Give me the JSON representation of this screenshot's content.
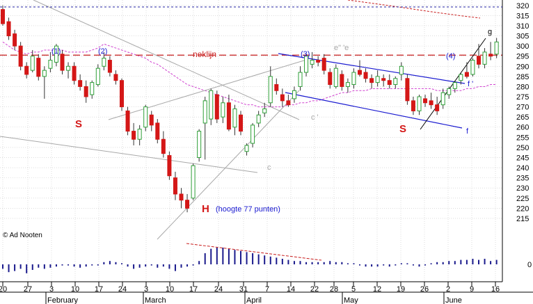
{
  "chart_data": {
    "type": "candlestick",
    "y_axis": {
      "min": 210,
      "max": 322,
      "ticks": [
        215,
        220,
        225,
        230,
        235,
        240,
        245,
        250,
        255,
        260,
        265,
        270,
        275,
        280,
        285,
        290,
        295,
        300,
        305,
        310,
        315,
        320
      ],
      "zero_label": "0"
    },
    "x_ticks": [
      "20",
      "27",
      "3",
      "10",
      "17",
      "24",
      "3",
      "10",
      "17",
      "24",
      "31",
      "7",
      "14",
      "22",
      "28",
      "5",
      "12",
      "19",
      "26",
      "2",
      "9",
      "16"
    ],
    "months": [
      "February",
      "March",
      "April",
      "May",
      "June"
    ],
    "candles": [
      {
        "o": 318,
        "h": 320,
        "l": 310,
        "c": 311
      },
      {
        "o": 312,
        "h": 314,
        "l": 303,
        "c": 305
      },
      {
        "o": 306,
        "h": 308,
        "l": 298,
        "c": 300
      },
      {
        "o": 300,
        "h": 302,
        "l": 288,
        "c": 290
      },
      {
        "o": 290,
        "h": 292,
        "l": 284,
        "c": 286
      },
      {
        "o": 288,
        "h": 298,
        "l": 287,
        "c": 295
      },
      {
        "o": 294,
        "h": 296,
        "l": 283,
        "c": 285
      },
      {
        "o": 285,
        "h": 290,
        "l": 274,
        "c": 288
      },
      {
        "o": 289,
        "h": 297,
        "l": 287,
        "c": 293
      },
      {
        "o": 292,
        "h": 301,
        "l": 290,
        "c": 300
      },
      {
        "o": 296,
        "h": 298,
        "l": 286,
        "c": 288
      },
      {
        "o": 288,
        "h": 292,
        "l": 284,
        "c": 290
      },
      {
        "o": 290,
        "h": 292,
        "l": 281,
        "c": 283
      },
      {
        "o": 283,
        "h": 286,
        "l": 278,
        "c": 280
      },
      {
        "o": 280,
        "h": 283,
        "l": 272,
        "c": 275
      },
      {
        "o": 276,
        "h": 283,
        "l": 274,
        "c": 282
      },
      {
        "o": 281,
        "h": 291,
        "l": 280,
        "c": 289
      },
      {
        "o": 290,
        "h": 297,
        "l": 288,
        "c": 294
      },
      {
        "o": 293,
        "h": 295,
        "l": 285,
        "c": 287
      },
      {
        "o": 286,
        "h": 288,
        "l": 281,
        "c": 283
      },
      {
        "o": 283,
        "h": 284,
        "l": 268,
        "c": 270
      },
      {
        "o": 268,
        "h": 270,
        "l": 256,
        "c": 258
      },
      {
        "o": 258,
        "h": 262,
        "l": 251,
        "c": 254
      },
      {
        "o": 254,
        "h": 261,
        "l": 251,
        "c": 259
      },
      {
        "o": 260,
        "h": 271,
        "l": 258,
        "c": 270
      },
      {
        "o": 266,
        "h": 268,
        "l": 258,
        "c": 261
      },
      {
        "o": 262,
        "h": 264,
        "l": 252,
        "c": 254
      },
      {
        "o": 254,
        "h": 258,
        "l": 245,
        "c": 247
      },
      {
        "o": 246,
        "h": 248,
        "l": 234,
        "c": 236
      },
      {
        "o": 235,
        "h": 238,
        "l": 224,
        "c": 227
      },
      {
        "o": 227,
        "h": 230,
        "l": 220,
        "c": 224
      },
      {
        "o": 224,
        "h": 227,
        "l": 218,
        "c": 220
      },
      {
        "o": 225,
        "h": 242,
        "l": 224,
        "c": 241
      },
      {
        "o": 245,
        "h": 259,
        "l": 243,
        "c": 258
      },
      {
        "o": 262,
        "h": 275,
        "l": 244,
        "c": 273
      },
      {
        "o": 264,
        "h": 279,
        "l": 261,
        "c": 278
      },
      {
        "o": 276,
        "h": 278,
        "l": 262,
        "c": 264
      },
      {
        "o": 265,
        "h": 275,
        "l": 262,
        "c": 272
      },
      {
        "o": 272,
        "h": 276,
        "l": 258,
        "c": 259
      },
      {
        "o": 260,
        "h": 271,
        "l": 256,
        "c": 269
      },
      {
        "o": 266,
        "h": 268,
        "l": 256,
        "c": 258
      },
      {
        "o": 248,
        "h": 252,
        "l": 246,
        "c": 251
      },
      {
        "o": 252,
        "h": 262,
        "l": 250,
        "c": 261
      },
      {
        "o": 262,
        "h": 268,
        "l": 260,
        "c": 266
      },
      {
        "o": 267,
        "h": 272,
        "l": 265,
        "c": 269
      },
      {
        "o": 272,
        "h": 290,
        "l": 270,
        "c": 285
      },
      {
        "o": 281,
        "h": 284,
        "l": 276,
        "c": 278
      },
      {
        "o": 276,
        "h": 279,
        "l": 270,
        "c": 273
      },
      {
        "o": 273,
        "h": 276,
        "l": 270,
        "c": 271
      },
      {
        "o": 274,
        "h": 280,
        "l": 272,
        "c": 278
      },
      {
        "o": 280,
        "h": 290,
        "l": 278,
        "c": 287
      },
      {
        "o": 287,
        "h": 296,
        "l": 285,
        "c": 295
      },
      {
        "o": 291,
        "h": 297,
        "l": 289,
        "c": 293
      },
      {
        "o": 293,
        "h": 295,
        "l": 290,
        "c": 292
      },
      {
        "o": 294,
        "h": 296,
        "l": 286,
        "c": 288
      },
      {
        "o": 287,
        "h": 289,
        "l": 279,
        "c": 281
      },
      {
        "o": 280,
        "h": 291,
        "l": 279,
        "c": 289
      },
      {
        "o": 286,
        "h": 288,
        "l": 278,
        "c": 280
      },
      {
        "o": 280,
        "h": 284,
        "l": 277,
        "c": 282
      },
      {
        "o": 281,
        "h": 289,
        "l": 279,
        "c": 287
      },
      {
        "o": 288,
        "h": 293,
        "l": 285,
        "c": 286
      },
      {
        "o": 287,
        "h": 289,
        "l": 282,
        "c": 284
      },
      {
        "o": 284,
        "h": 286,
        "l": 279,
        "c": 282
      },
      {
        "o": 282,
        "h": 288,
        "l": 280,
        "c": 285
      },
      {
        "o": 284,
        "h": 286,
        "l": 280,
        "c": 283
      },
      {
        "o": 283,
        "h": 286,
        "l": 279,
        "c": 281
      },
      {
        "o": 281,
        "h": 285,
        "l": 279,
        "c": 284
      },
      {
        "o": 286,
        "h": 292,
        "l": 283,
        "c": 290
      },
      {
        "o": 284,
        "h": 286,
        "l": 271,
        "c": 273
      },
      {
        "o": 273,
        "h": 275,
        "l": 266,
        "c": 268
      },
      {
        "o": 268,
        "h": 276,
        "l": 266,
        "c": 275
      },
      {
        "o": 274,
        "h": 276,
        "l": 270,
        "c": 272
      },
      {
        "o": 273,
        "h": 277,
        "l": 269,
        "c": 271
      },
      {
        "o": 271,
        "h": 275,
        "l": 266,
        "c": 268
      },
      {
        "o": 271,
        "h": 279,
        "l": 269,
        "c": 277
      },
      {
        "o": 276,
        "h": 280,
        "l": 274,
        "c": 279
      },
      {
        "o": 279,
        "h": 283,
        "l": 277,
        "c": 282
      },
      {
        "o": 283,
        "h": 287,
        "l": 281,
        "c": 286
      },
      {
        "o": 287,
        "h": 292,
        "l": 284,
        "c": 285
      },
      {
        "o": 286,
        "h": 294,
        "l": 285,
        "c": 293
      },
      {
        "o": 295,
        "h": 301,
        "l": 289,
        "c": 291
      },
      {
        "o": 291,
        "h": 299,
        "l": 289,
        "c": 297
      },
      {
        "o": 296,
        "h": 302,
        "l": 293,
        "c": 295
      },
      {
        "o": 296,
        "h": 304,
        "l": 294,
        "c": 302
      }
    ],
    "volume": [
      -4,
      -7,
      -6,
      -4,
      -8,
      -5,
      -3,
      -4,
      -3,
      -2,
      -1,
      -1,
      -2,
      -3,
      -2,
      -1,
      -1,
      2,
      3,
      2,
      1,
      -2,
      -4,
      -3,
      -2,
      -1,
      -3,
      -2,
      -4,
      -6,
      -3,
      -2,
      -1,
      3,
      10,
      14,
      15,
      15,
      14,
      13,
      12,
      11,
      10,
      9,
      8,
      7,
      6,
      5,
      4,
      3,
      3,
      2,
      2,
      2,
      2,
      3,
      2,
      2,
      1,
      1,
      -1,
      -2,
      -2,
      -2,
      -1,
      -2,
      -1,
      1,
      1,
      -1,
      -2,
      -1,
      1,
      2,
      2,
      3,
      3,
      4,
      4,
      5,
      4,
      5,
      3,
      4
    ],
    "moving_average": [
      302,
      300,
      298,
      297,
      296,
      297,
      297,
      298,
      298,
      298,
      298,
      297,
      297,
      297,
      297,
      298,
      299,
      301,
      300,
      299,
      298,
      297,
      296,
      295,
      294,
      292,
      291,
      289,
      287,
      285,
      283,
      281,
      280,
      279,
      278,
      277,
      276,
      275,
      274,
      273,
      272,
      271,
      271,
      270,
      270,
      270,
      270,
      270,
      271,
      271,
      272,
      272,
      273,
      273,
      274,
      275,
      276,
      277,
      277,
      278,
      278,
      278,
      279,
      279,
      279,
      279,
      279,
      279,
      279,
      279,
      279,
      279,
      279,
      278,
      278,
      278,
      278,
      278,
      279,
      279,
      280,
      280,
      281,
      281
    ],
    "neckline": 295.5,
    "overlay_labels": {
      "neckline": "neklijn",
      "copyright": "© Ad Nooten",
      "height_note": "(hoogte 77 punten)",
      "shoulder_1": "S",
      "shoulder_2": "S",
      "head": "H",
      "peak_1": "(1)",
      "peak_2": "(2)",
      "peak_3": "(3)",
      "peak_4": "(4)",
      "line_c": "c",
      "line_c_prime": "c '",
      "line_e": "e\" 'e",
      "line_f": "f",
      "line_f_prime": "f '",
      "line_g": "g"
    },
    "colors": {
      "up": "#2e9f37",
      "down": "#d41717",
      "blue_lines": "#1a1ad0",
      "neckline": "#c81c1c",
      "ma": "#d040d0",
      "trend": "#a8a8a8"
    }
  }
}
